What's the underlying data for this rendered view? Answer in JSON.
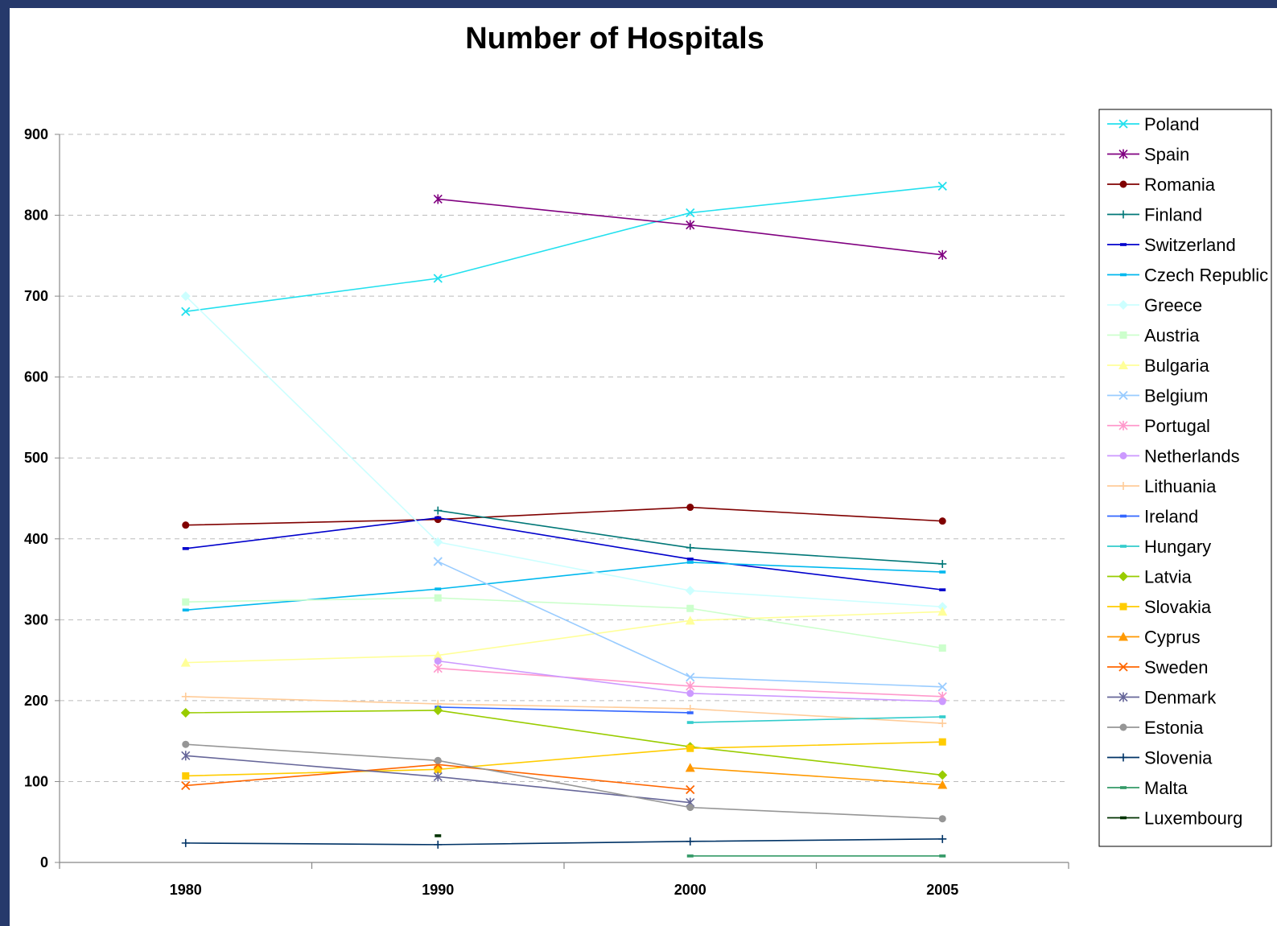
{
  "chart_data": {
    "type": "line",
    "title": "Number of Hospitals",
    "xlabel": "",
    "ylabel": "",
    "categories": [
      "1980",
      "1990",
      "2000",
      "2005"
    ],
    "ylim": [
      0,
      900
    ],
    "yticks": [
      0,
      100,
      200,
      300,
      400,
      500,
      600,
      700,
      800,
      900
    ],
    "grid": "horizontal dashed",
    "legend_position": "right",
    "series": [
      {
        "name": "Poland",
        "color": "#22e0ee",
        "marker": "x",
        "values": [
          681,
          722,
          803,
          836
        ]
      },
      {
        "name": "Spain",
        "color": "#800080",
        "marker": "star",
        "values": [
          null,
          820,
          788,
          751
        ]
      },
      {
        "name": "Romania",
        "color": "#800000",
        "marker": "circle",
        "values": [
          417,
          424,
          439,
          422
        ]
      },
      {
        "name": "Finland",
        "color": "#007777",
        "marker": "plus",
        "values": [
          null,
          435,
          389,
          369
        ]
      },
      {
        "name": "Switzerland",
        "color": "#0000cc",
        "marker": "dash",
        "values": [
          388,
          426,
          375,
          337
        ]
      },
      {
        "name": "Czech Republic",
        "color": "#00b8ee",
        "marker": "dash",
        "values": [
          312,
          338,
          371,
          359
        ]
      },
      {
        "name": "Greece",
        "color": "#ccffff",
        "marker": "diamond",
        "values": [
          700,
          396,
          336,
          316
        ]
      },
      {
        "name": "Austria",
        "color": "#ccffcc",
        "marker": "square",
        "values": [
          322,
          327,
          314,
          265
        ]
      },
      {
        "name": "Bulgaria",
        "color": "#ffff99",
        "marker": "triangle",
        "values": [
          247,
          256,
          299,
          310
        ]
      },
      {
        "name": "Belgium",
        "color": "#99ccff",
        "marker": "x",
        "values": [
          null,
          372,
          229,
          217
        ]
      },
      {
        "name": "Portugal",
        "color": "#ff99cc",
        "marker": "star",
        "values": [
          null,
          240,
          218,
          205
        ]
      },
      {
        "name": "Netherlands",
        "color": "#cc99ff",
        "marker": "circle",
        "values": [
          null,
          249,
          209,
          199
        ]
      },
      {
        "name": "Lithuania",
        "color": "#ffcc99",
        "marker": "plus",
        "values": [
          205,
          196,
          190,
          172
        ]
      },
      {
        "name": "Ireland",
        "color": "#3366ff",
        "marker": "dash",
        "values": [
          null,
          192,
          185,
          null
        ]
      },
      {
        "name": "Hungary",
        "color": "#33cccc",
        "marker": "dash",
        "values": [
          null,
          null,
          173,
          180
        ]
      },
      {
        "name": "Latvia",
        "color": "#99cc00",
        "marker": "diamond",
        "values": [
          185,
          188,
          143,
          108
        ]
      },
      {
        "name": "Slovakia",
        "color": "#ffcc00",
        "marker": "square",
        "values": [
          107,
          115,
          141,
          149
        ]
      },
      {
        "name": "Cyprus",
        "color": "#ff9900",
        "marker": "triangle",
        "values": [
          null,
          null,
          117,
          96
        ]
      },
      {
        "name": "Sweden",
        "color": "#ff6600",
        "marker": "x",
        "values": [
          95,
          121,
          90,
          null
        ]
      },
      {
        "name": "Denmark",
        "color": "#666699",
        "marker": "star",
        "values": [
          132,
          106,
          74,
          null
        ]
      },
      {
        "name": "Estonia",
        "color": "#969696",
        "marker": "circle",
        "values": [
          146,
          126,
          68,
          54
        ]
      },
      {
        "name": "Slovenia",
        "color": "#003366",
        "marker": "plus",
        "values": [
          24,
          22,
          26,
          29
        ]
      },
      {
        "name": "Malta",
        "color": "#339966",
        "marker": "dash",
        "values": [
          null,
          null,
          8,
          8
        ]
      },
      {
        "name": "Luxembourg",
        "color": "#003300",
        "marker": "dash",
        "values": [
          null,
          33,
          null,
          null
        ]
      }
    ]
  }
}
